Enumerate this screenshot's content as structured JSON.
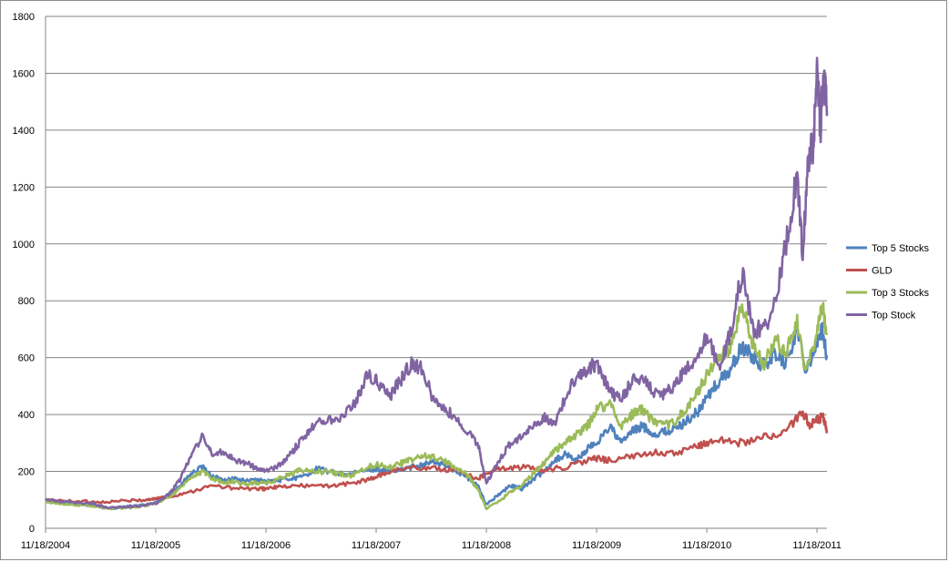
{
  "chart_data": {
    "type": "line",
    "title": "",
    "xlabel": "",
    "ylabel": "",
    "ylim": [
      0,
      1800
    ],
    "y_ticks": [
      0,
      200,
      400,
      600,
      800,
      1000,
      1200,
      1400,
      1600,
      1800
    ],
    "x_tick_labels": [
      "11/18/2004",
      "11/18/2005",
      "11/18/2006",
      "11/18/2007",
      "11/18/2008",
      "11/18/2009",
      "11/18/2010",
      "11/18/2011"
    ],
    "x_range": [
      2004.88,
      2011.97
    ],
    "grid": "horizontal",
    "legend_position": "right",
    "series": [
      {
        "name": "Top 5 Stocks",
        "color": "#4f81bd",
        "points": [
          [
            2004.88,
            95
          ],
          [
            2005.0,
            92
          ],
          [
            2005.15,
            85
          ],
          [
            2005.3,
            80
          ],
          [
            2005.45,
            70
          ],
          [
            2005.6,
            75
          ],
          [
            2005.75,
            80
          ],
          [
            2005.88,
            90
          ],
          [
            2006.0,
            120
          ],
          [
            2006.1,
            150
          ],
          [
            2006.2,
            190
          ],
          [
            2006.3,
            215
          ],
          [
            2006.4,
            180
          ],
          [
            2006.5,
            170
          ],
          [
            2006.6,
            175
          ],
          [
            2006.7,
            165
          ],
          [
            2006.8,
            170
          ],
          [
            2006.88,
            165
          ],
          [
            2007.0,
            170
          ],
          [
            2007.1,
            175
          ],
          [
            2007.2,
            180
          ],
          [
            2007.35,
            210
          ],
          [
            2007.5,
            195
          ],
          [
            2007.65,
            190
          ],
          [
            2007.8,
            205
          ],
          [
            2007.88,
            210
          ],
          [
            2008.0,
            200
          ],
          [
            2008.1,
            205
          ],
          [
            2008.2,
            215
          ],
          [
            2008.3,
            225
          ],
          [
            2008.4,
            235
          ],
          [
            2008.5,
            220
          ],
          [
            2008.6,
            205
          ],
          [
            2008.7,
            180
          ],
          [
            2008.8,
            150
          ],
          [
            2008.88,
            85
          ],
          [
            2009.0,
            120
          ],
          [
            2009.1,
            150
          ],
          [
            2009.2,
            140
          ],
          [
            2009.3,
            170
          ],
          [
            2009.4,
            200
          ],
          [
            2009.5,
            240
          ],
          [
            2009.6,
            260
          ],
          [
            2009.7,
            240
          ],
          [
            2009.8,
            280
          ],
          [
            2009.88,
            300
          ],
          [
            2010.0,
            360
          ],
          [
            2010.1,
            300
          ],
          [
            2010.2,
            340
          ],
          [
            2010.3,
            360
          ],
          [
            2010.4,
            330
          ],
          [
            2010.5,
            340
          ],
          [
            2010.6,
            350
          ],
          [
            2010.7,
            380
          ],
          [
            2010.8,
            410
          ],
          [
            2010.88,
            460
          ],
          [
            2011.0,
            520
          ],
          [
            2011.1,
            560
          ],
          [
            2011.2,
            640
          ],
          [
            2011.3,
            600
          ],
          [
            2011.4,
            570
          ],
          [
            2011.5,
            620
          ],
          [
            2011.6,
            580
          ],
          [
            2011.7,
            700
          ],
          [
            2011.78,
            560
          ],
          [
            2011.88,
            650
          ],
          [
            2011.93,
            700
          ],
          [
            2011.97,
            600
          ]
        ]
      },
      {
        "name": "GLD",
        "color": "#c0504d",
        "points": [
          [
            2004.88,
            100
          ],
          [
            2005.0,
            97
          ],
          [
            2005.2,
            95
          ],
          [
            2005.4,
            92
          ],
          [
            2005.6,
            97
          ],
          [
            2005.8,
            100
          ],
          [
            2005.88,
            105
          ],
          [
            2006.0,
            110
          ],
          [
            2006.2,
            130
          ],
          [
            2006.4,
            150
          ],
          [
            2006.6,
            140
          ],
          [
            2006.8,
            138
          ],
          [
            2006.88,
            140
          ],
          [
            2007.0,
            145
          ],
          [
            2007.2,
            150
          ],
          [
            2007.4,
            148
          ],
          [
            2007.6,
            155
          ],
          [
            2007.8,
            170
          ],
          [
            2007.88,
            180
          ],
          [
            2008.0,
            200
          ],
          [
            2008.2,
            215
          ],
          [
            2008.4,
            210
          ],
          [
            2008.6,
            205
          ],
          [
            2008.8,
            175
          ],
          [
            2008.88,
            190
          ],
          [
            2009.0,
            210
          ],
          [
            2009.2,
            215
          ],
          [
            2009.4,
            205
          ],
          [
            2009.6,
            215
          ],
          [
            2009.8,
            240
          ],
          [
            2009.88,
            245
          ],
          [
            2010.0,
            240
          ],
          [
            2010.2,
            250
          ],
          [
            2010.4,
            270
          ],
          [
            2010.6,
            260
          ],
          [
            2010.8,
            290
          ],
          [
            2010.88,
            300
          ],
          [
            2011.0,
            310
          ],
          [
            2011.2,
            300
          ],
          [
            2011.4,
            320
          ],
          [
            2011.6,
            340
          ],
          [
            2011.75,
            410
          ],
          [
            2011.82,
            360
          ],
          [
            2011.88,
            380
          ],
          [
            2011.93,
            390
          ],
          [
            2011.97,
            345
          ]
        ]
      },
      {
        "name": "Top 3 Stocks",
        "color": "#9bbb59",
        "points": [
          [
            2004.88,
            92
          ],
          [
            2005.0,
            88
          ],
          [
            2005.15,
            83
          ],
          [
            2005.3,
            78
          ],
          [
            2005.45,
            70
          ],
          [
            2005.6,
            72
          ],
          [
            2005.75,
            78
          ],
          [
            2005.88,
            88
          ],
          [
            2006.0,
            110
          ],
          [
            2006.1,
            140
          ],
          [
            2006.2,
            175
          ],
          [
            2006.3,
            200
          ],
          [
            2006.4,
            175
          ],
          [
            2006.5,
            160
          ],
          [
            2006.6,
            165
          ],
          [
            2006.7,
            155
          ],
          [
            2006.8,
            160
          ],
          [
            2006.88,
            158
          ],
          [
            2007.0,
            175
          ],
          [
            2007.1,
            190
          ],
          [
            2007.2,
            205
          ],
          [
            2007.35,
            200
          ],
          [
            2007.5,
            195
          ],
          [
            2007.65,
            185
          ],
          [
            2007.8,
            215
          ],
          [
            2007.88,
            225
          ],
          [
            2008.0,
            215
          ],
          [
            2008.1,
            230
          ],
          [
            2008.2,
            240
          ],
          [
            2008.3,
            255
          ],
          [
            2008.4,
            250
          ],
          [
            2008.5,
            235
          ],
          [
            2008.6,
            215
          ],
          [
            2008.7,
            190
          ],
          [
            2008.8,
            140
          ],
          [
            2008.88,
            70
          ],
          [
            2009.0,
            95
          ],
          [
            2009.1,
            130
          ],
          [
            2009.2,
            150
          ],
          [
            2009.3,
            190
          ],
          [
            2009.4,
            230
          ],
          [
            2009.5,
            275
          ],
          [
            2009.6,
            300
          ],
          [
            2009.7,
            330
          ],
          [
            2009.8,
            360
          ],
          [
            2009.88,
            420
          ],
          [
            2010.0,
            440
          ],
          [
            2010.1,
            360
          ],
          [
            2010.2,
            400
          ],
          [
            2010.3,
            420
          ],
          [
            2010.4,
            370
          ],
          [
            2010.5,
            360
          ],
          [
            2010.6,
            380
          ],
          [
            2010.7,
            420
          ],
          [
            2010.8,
            480
          ],
          [
            2010.88,
            540
          ],
          [
            2011.0,
            600
          ],
          [
            2011.1,
            640
          ],
          [
            2011.2,
            780
          ],
          [
            2011.3,
            640
          ],
          [
            2011.4,
            580
          ],
          [
            2011.5,
            660
          ],
          [
            2011.6,
            620
          ],
          [
            2011.7,
            720
          ],
          [
            2011.78,
            540
          ],
          [
            2011.88,
            700
          ],
          [
            2011.93,
            780
          ],
          [
            2011.97,
            680
          ]
        ]
      },
      {
        "name": "Top Stock",
        "color": "#8064a2",
        "points": [
          [
            2004.88,
            100
          ],
          [
            2005.0,
            95
          ],
          [
            2005.15,
            90
          ],
          [
            2005.3,
            88
          ],
          [
            2005.45,
            72
          ],
          [
            2005.6,
            75
          ],
          [
            2005.75,
            80
          ],
          [
            2005.88,
            88
          ],
          [
            2006.0,
            120
          ],
          [
            2006.1,
            170
          ],
          [
            2006.2,
            260
          ],
          [
            2006.3,
            320
          ],
          [
            2006.4,
            260
          ],
          [
            2006.5,
            270
          ],
          [
            2006.6,
            240
          ],
          [
            2006.7,
            230
          ],
          [
            2006.8,
            210
          ],
          [
            2006.88,
            200
          ],
          [
            2007.0,
            220
          ],
          [
            2007.1,
            260
          ],
          [
            2007.2,
            310
          ],
          [
            2007.3,
            360
          ],
          [
            2007.4,
            380
          ],
          [
            2007.55,
            390
          ],
          [
            2007.7,
            450
          ],
          [
            2007.8,
            540
          ],
          [
            2007.88,
            520
          ],
          [
            2008.0,
            460
          ],
          [
            2008.1,
            520
          ],
          [
            2008.2,
            580
          ],
          [
            2008.3,
            560
          ],
          [
            2008.4,
            450
          ],
          [
            2008.5,
            420
          ],
          [
            2008.6,
            390
          ],
          [
            2008.7,
            340
          ],
          [
            2008.8,
            300
          ],
          [
            2008.88,
            160
          ],
          [
            2009.0,
            240
          ],
          [
            2009.1,
            300
          ],
          [
            2009.2,
            320
          ],
          [
            2009.3,
            360
          ],
          [
            2009.4,
            390
          ],
          [
            2009.5,
            370
          ],
          [
            2009.6,
            460
          ],
          [
            2009.7,
            540
          ],
          [
            2009.8,
            560
          ],
          [
            2009.88,
            580
          ],
          [
            2010.0,
            480
          ],
          [
            2010.1,
            450
          ],
          [
            2010.2,
            520
          ],
          [
            2010.3,
            530
          ],
          [
            2010.4,
            480
          ],
          [
            2010.5,
            470
          ],
          [
            2010.6,
            510
          ],
          [
            2010.7,
            560
          ],
          [
            2010.8,
            590
          ],
          [
            2010.88,
            680
          ],
          [
            2011.0,
            560
          ],
          [
            2011.1,
            700
          ],
          [
            2011.2,
            900
          ],
          [
            2011.3,
            700
          ],
          [
            2011.4,
            700
          ],
          [
            2011.5,
            800
          ],
          [
            2011.6,
            1000
          ],
          [
            2011.7,
            1250
          ],
          [
            2011.75,
            950
          ],
          [
            2011.8,
            1300
          ],
          [
            2011.85,
            1350
          ],
          [
            2011.88,
            1650
          ],
          [
            2011.91,
            1400
          ],
          [
            2011.94,
            1620
          ],
          [
            2011.97,
            1450
          ]
        ]
      }
    ]
  }
}
